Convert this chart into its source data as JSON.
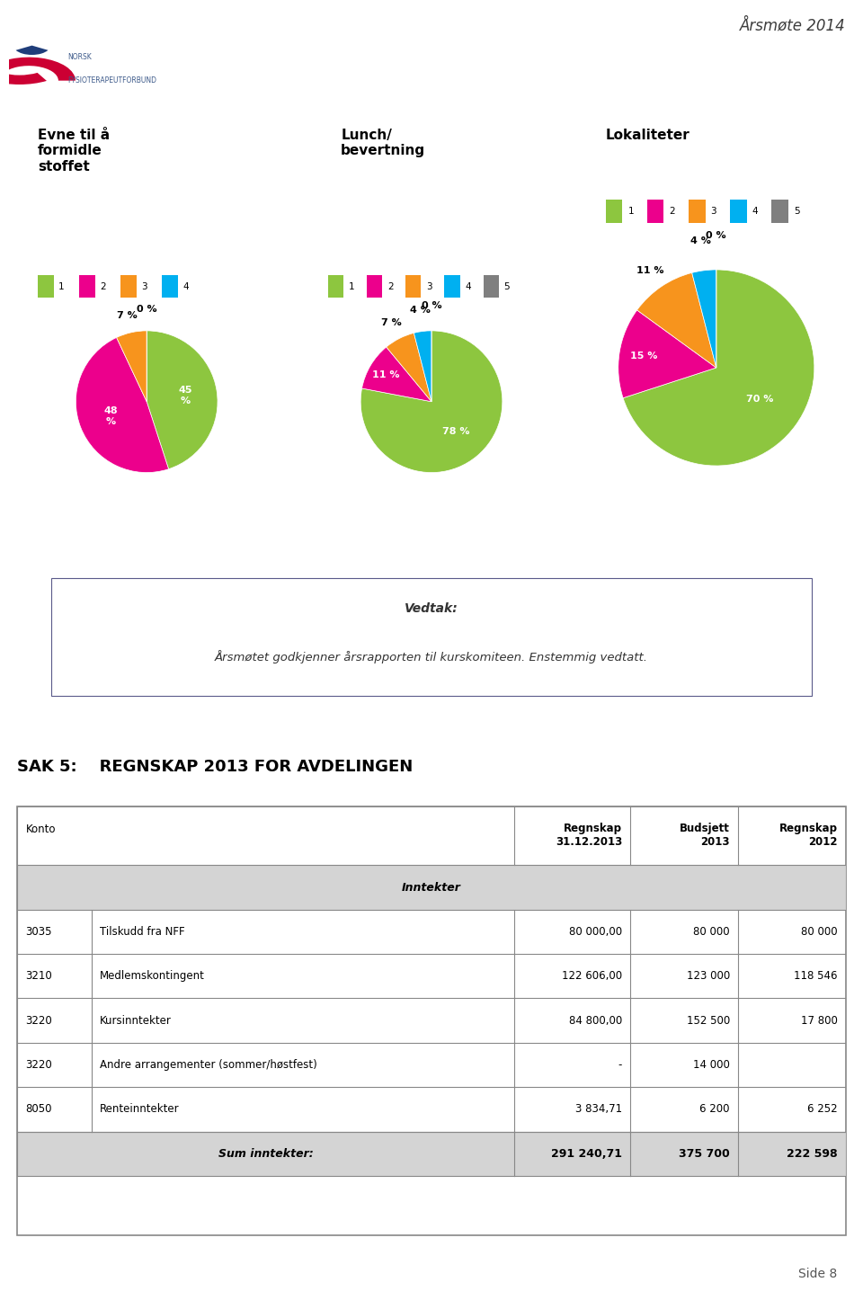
{
  "page_title": "Årsmøte 2014",
  "page_num": "Side 8",
  "logo_text1": "NORSK",
  "logo_text2": "FYSIOTERAPEUTFORBUND",
  "header_line_color": "#c8d400",
  "pie1_title": "Evne til å\nformidle\nstoffet",
  "pie1_values": [
    45,
    48,
    7,
    0
  ],
  "pie1_colors": [
    "#8dc63f",
    "#ec008c",
    "#f7941d",
    "#00b0f0"
  ],
  "pie1_labels": [
    "45\n%",
    "48\n%",
    "7 %",
    "0 %"
  ],
  "pie1_legend": [
    "1",
    "2",
    "3",
    "4"
  ],
  "pie2_title": "Lunch/\nbevertning",
  "pie2_values": [
    78,
    11,
    7,
    4,
    0
  ],
  "pie2_colors": [
    "#8dc63f",
    "#ec008c",
    "#f7941d",
    "#00b0f0",
    "#7f7f7f"
  ],
  "pie2_labels": [
    "78 %",
    "11 %",
    "7 %",
    "4 %",
    "0 %"
  ],
  "pie2_legend": [
    "1",
    "2",
    "3",
    "4",
    "5"
  ],
  "pie3_title": "Lokaliteter",
  "pie3_values": [
    70,
    15,
    11,
    4,
    0
  ],
  "pie3_colors": [
    "#8dc63f",
    "#ec008c",
    "#f7941d",
    "#00b0f0",
    "#7f7f7f"
  ],
  "pie3_labels": [
    "70 %",
    "15 %",
    "11 %",
    "4 %",
    "0 %"
  ],
  "pie3_legend": [
    "1",
    "2",
    "3",
    "4",
    "5"
  ],
  "vedtak_line1": "Vedtak:",
  "vedtak_line2": "Årsmøtet godkjenner årsrapporten til kurskomiteen. Enstemmig vedtatt.",
  "sak_title": "SAK 5:    REGNSKAP 2013 FOR AVDELINGEN",
  "table_header_row": [
    "Konto",
    "",
    "Regnskap\n31.12.2013",
    "Budsjett\n2013",
    "Regnskap\n2012"
  ],
  "table_section": "Inntekter",
  "table_rows": [
    [
      "3035",
      "Tilskudd fra NFF",
      "80 000,00",
      "80 000",
      "80 000"
    ],
    [
      "3210",
      "Medlemskontingent",
      "122 606,00",
      "123 000",
      "118 546"
    ],
    [
      "3220",
      "Kursinntekter",
      "84 800,00",
      "152 500",
      "17 800"
    ],
    [
      "3220",
      "Andre arrangementer (sommer/høstfest)",
      "-",
      "14 000",
      ""
    ],
    [
      "8050",
      "Renteinntekter",
      "3 834,71",
      "6 200",
      "6 252"
    ]
  ],
  "table_sum_row": [
    "",
    "Sum inntekter:",
    "291 240,71",
    "375 700",
    "222 598"
  ],
  "bg_color": "#ffffff",
  "text_color": "#000000",
  "table_border_color": "#999999",
  "table_header_bg": "#d9d9d9",
  "table_section_bg": "#d9d9d9"
}
